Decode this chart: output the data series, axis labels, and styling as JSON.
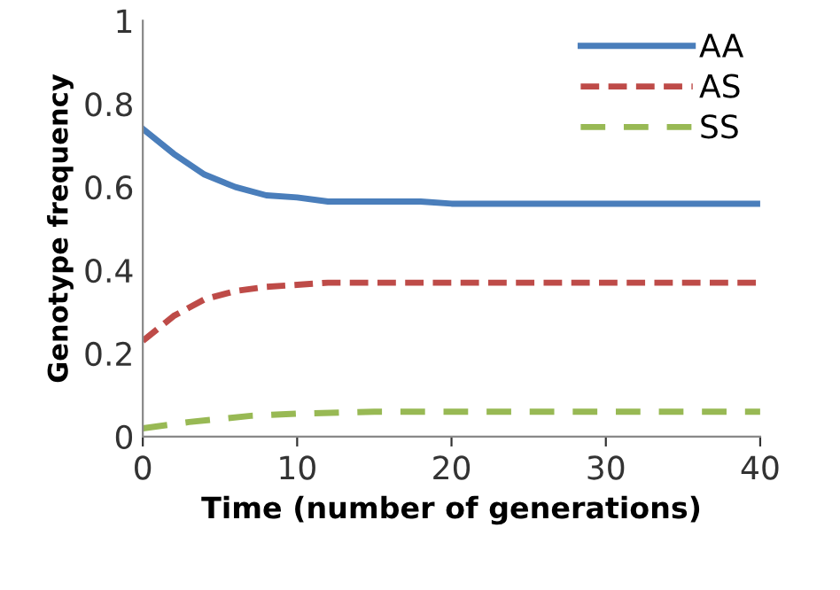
{
  "chart_data": {
    "type": "line",
    "xlabel": "Time (number of generations)",
    "ylabel": "Genotype frequency",
    "xlim": [
      0,
      40
    ],
    "xticks": [
      0,
      10,
      20,
      30,
      40
    ],
    "ylim": [
      0,
      1
    ],
    "yticks": [
      0,
      0.2,
      0.4,
      0.6,
      0.8,
      1
    ],
    "grid": false,
    "legend": "top right",
    "marker": "none",
    "series": [
      {
        "name": "AA",
        "color": "#4a7ebb",
        "line_style": "solid",
        "x": [
          0,
          2,
          4,
          6,
          8,
          10,
          12,
          18,
          20,
          40
        ],
        "values": [
          0.74,
          0.68,
          0.63,
          0.6,
          0.58,
          0.575,
          0.565,
          0.565,
          0.56,
          0.56
        ]
      },
      {
        "name": "AS",
        "color": "#be4b48",
        "line_style": "dashed",
        "x": [
          0,
          2,
          4,
          6,
          8,
          10,
          12,
          40
        ],
        "values": [
          0.23,
          0.29,
          0.33,
          0.35,
          0.36,
          0.365,
          0.37,
          0.37
        ]
      },
      {
        "name": "SS",
        "color": "#98b954",
        "line_style": "dashed",
        "x": [
          0,
          3,
          7,
          10,
          15,
          40
        ],
        "values": [
          0.02,
          0.035,
          0.05,
          0.055,
          0.06,
          0.06
        ]
      }
    ]
  }
}
